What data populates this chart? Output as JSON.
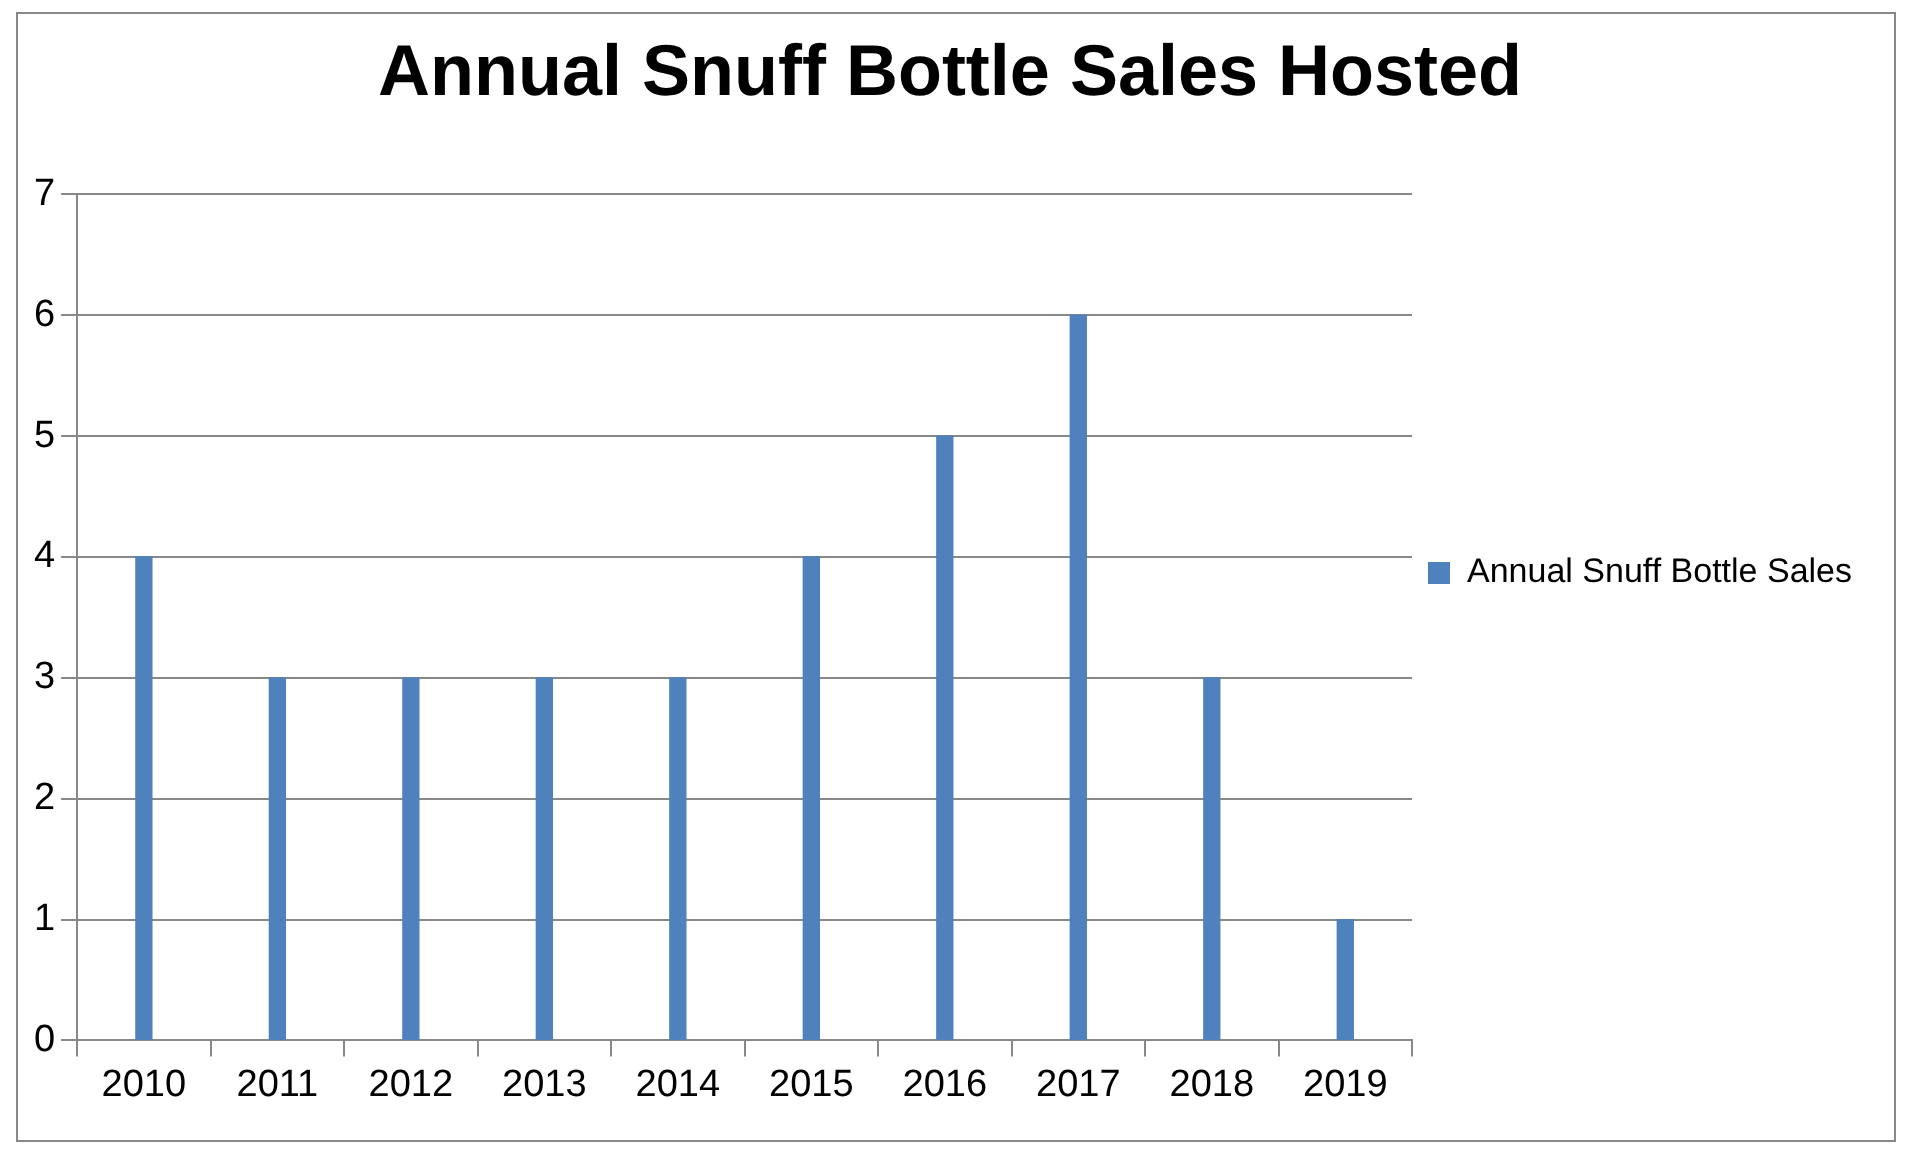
{
  "chart_data": {
    "type": "bar",
    "title": "Annual Snuff Bottle Sales Hosted",
    "categories": [
      "2010",
      "2011",
      "2012",
      "2013",
      "2014",
      "2015",
      "2016",
      "2017",
      "2018",
      "2019"
    ],
    "series": [
      {
        "name": "Annual Snuff Bottle Sales",
        "color": "#4f81bd",
        "values": [
          4,
          3,
          3,
          3,
          3,
          4,
          5,
          6,
          3,
          1
        ]
      }
    ],
    "ylim": [
      0,
      7
    ],
    "yticks": [
      0,
      1,
      2,
      3,
      4,
      5,
      6,
      7
    ],
    "grid": "y",
    "legend": "right"
  }
}
